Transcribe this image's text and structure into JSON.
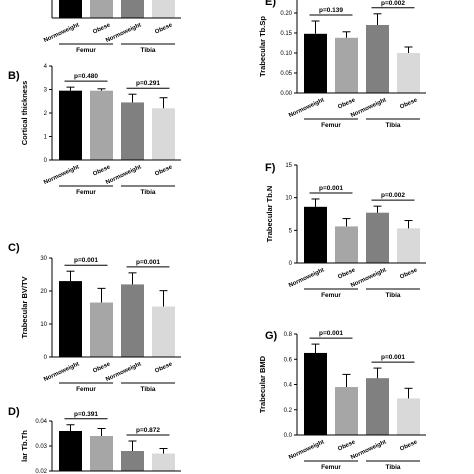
{
  "chart_data": [
    {
      "id": "A",
      "panel_label": "",
      "type": "bar",
      "ylabel": "",
      "categories": [
        "Normoweight",
        "Obese",
        "Normoweight",
        "Obese"
      ],
      "groups": [
        "Femur",
        "Tibia"
      ],
      "values": [
        5.0,
        4.6,
        4.8,
        4.5
      ],
      "errors": [
        0,
        0,
        0,
        0
      ],
      "colors": [
        "#000000",
        "#a6a6a6",
        "#808080",
        "#d9d9d9"
      ],
      "ylim": [
        0,
        5
      ],
      "yticks": [],
      "pvalues": []
    },
    {
      "id": "B",
      "panel_label": "B)",
      "type": "bar",
      "ylabel": "Cortical thickness",
      "categories": [
        "Normoweight",
        "Obese",
        "Normoweight",
        "Obese"
      ],
      "groups": [
        "Femur",
        "Tibia"
      ],
      "values": [
        2.95,
        2.95,
        2.45,
        2.2
      ],
      "errors": [
        0.15,
        0.08,
        0.35,
        0.45
      ],
      "colors": [
        "#000000",
        "#a6a6a6",
        "#808080",
        "#d9d9d9"
      ],
      "ylim": [
        0,
        4
      ],
      "yticks": [
        "0",
        "1",
        "2",
        "3",
        "4"
      ],
      "pvalues": [
        "p=0.480",
        "p=0.291"
      ]
    },
    {
      "id": "C",
      "panel_label": "C)",
      "type": "bar",
      "ylabel": "Trabecular BV/TV",
      "categories": [
        "Normoweight",
        "Obese",
        "Normoweight",
        "Obese"
      ],
      "groups": [
        "Femur",
        "Tibia"
      ],
      "values": [
        23,
        16.5,
        22,
        15.3
      ],
      "errors": [
        3,
        4.3,
        3.5,
        4.8
      ],
      "colors": [
        "#000000",
        "#a6a6a6",
        "#808080",
        "#d9d9d9"
      ],
      "ylim": [
        0,
        30
      ],
      "yticks": [
        "0",
        "10",
        "20",
        "30"
      ],
      "pvalues": [
        "p=0.001",
        "p=0.001"
      ]
    },
    {
      "id": "D",
      "panel_label": "D)",
      "type": "bar",
      "ylabel": "lar Tb.Th",
      "categories": [
        "Normoweight",
        "Obese",
        "Normoweight",
        "Obese"
      ],
      "groups": [
        "Femur",
        "Tibia"
      ],
      "values": [
        0.036,
        0.034,
        0.028,
        0.027
      ],
      "errors": [
        0.0025,
        0.003,
        0.004,
        0.002
      ],
      "colors": [
        "#000000",
        "#a6a6a6",
        "#808080",
        "#d9d9d9"
      ],
      "ylim": [
        0.02,
        0.04
      ],
      "yticks": [
        "0.02",
        "0.03",
        "0.04"
      ],
      "pvalues": [
        "p=0.391",
        "p=0.872"
      ]
    },
    {
      "id": "E",
      "panel_label": "E)",
      "type": "bar",
      "ylabel": "Trabecular Tb.Sp",
      "categories": [
        "Normoweight",
        "Obese",
        "Normoweight",
        "Obese"
      ],
      "groups": [
        "Femur",
        "Tibia"
      ],
      "values": [
        0.148,
        0.138,
        0.17,
        0.1
      ],
      "errors": [
        0.032,
        0.015,
        0.028,
        0.015
      ],
      "colors": [
        "#000000",
        "#a6a6a6",
        "#808080",
        "#d9d9d9"
      ],
      "ylim": [
        0,
        0.25
      ],
      "yticks": [
        "0.00",
        "0.05",
        "0.10",
        "0.15",
        "0.20",
        "0.25"
      ],
      "pvalues": [
        "p=0.139",
        "p=0.002"
      ]
    },
    {
      "id": "F",
      "panel_label": "F)",
      "type": "bar",
      "ylabel": "Trabecular Tb.N",
      "categories": [
        "Normoweight",
        "Obese",
        "Normoweight",
        "Obese"
      ],
      "groups": [
        "Femur",
        "Tibia"
      ],
      "values": [
        8.6,
        5.6,
        7.7,
        5.3
      ],
      "errors": [
        1.2,
        1.2,
        1.0,
        1.2
      ],
      "colors": [
        "#000000",
        "#a6a6a6",
        "#808080",
        "#d9d9d9"
      ],
      "ylim": [
        0,
        15
      ],
      "yticks": [
        "0",
        "5",
        "10",
        "15"
      ],
      "pvalues": [
        "p=0.001",
        "p=0.002"
      ]
    },
    {
      "id": "G",
      "panel_label": "G)",
      "type": "bar",
      "ylabel": "Trabecular BMD",
      "categories": [
        "Normoweight",
        "Obese",
        "Normoweight",
        "Obese"
      ],
      "groups": [
        "Femur",
        "Tibia"
      ],
      "values": [
        0.65,
        0.38,
        0.45,
        0.29
      ],
      "errors": [
        0.07,
        0.1,
        0.08,
        0.08
      ],
      "colors": [
        "#000000",
        "#a6a6a6",
        "#808080",
        "#d9d9d9"
      ],
      "ylim": [
        0,
        0.8
      ],
      "yticks": [
        "0.0",
        "0.2",
        "0.4",
        "0.6",
        "0.8"
      ],
      "pvalues": [
        "p=0.001",
        "p=0.001"
      ]
    }
  ]
}
